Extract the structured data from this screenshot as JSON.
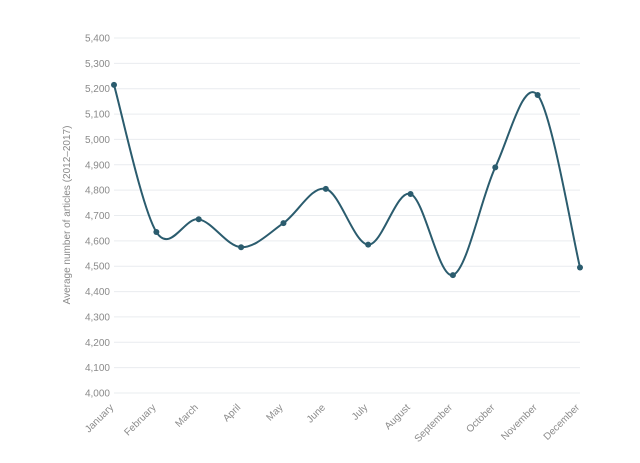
{
  "chart_data": {
    "type": "line",
    "title": "",
    "xlabel": "",
    "ylabel": "Average number of articles (2012–2017)",
    "categories": [
      "January",
      "February",
      "March",
      "April",
      "May",
      "June",
      "July",
      "August",
      "September",
      "October",
      "November",
      "December"
    ],
    "series": [
      {
        "values": [
          5215,
          4635,
          4685,
          4575,
          4670,
          4805,
          4585,
          4785,
          4465,
          4890,
          5175,
          4495
        ],
        "color": "#2b5c6e"
      }
    ],
    "ylim": [
      4000,
      5400
    ],
    "yticks": [
      4000,
      4100,
      4200,
      4300,
      4400,
      4500,
      4600,
      4700,
      4800,
      4900,
      5000,
      5100,
      5200,
      5300,
      5400
    ],
    "ytick_labels": [
      "4,000",
      "4,100",
      "4,200",
      "4,300",
      "4,400",
      "4,500",
      "4,600",
      "4,700",
      "4,800",
      "4,900",
      "5,000",
      "5,100",
      "5,200",
      "5,300",
      "5,400"
    ],
    "grid": true,
    "smooth": true,
    "markers": true
  }
}
